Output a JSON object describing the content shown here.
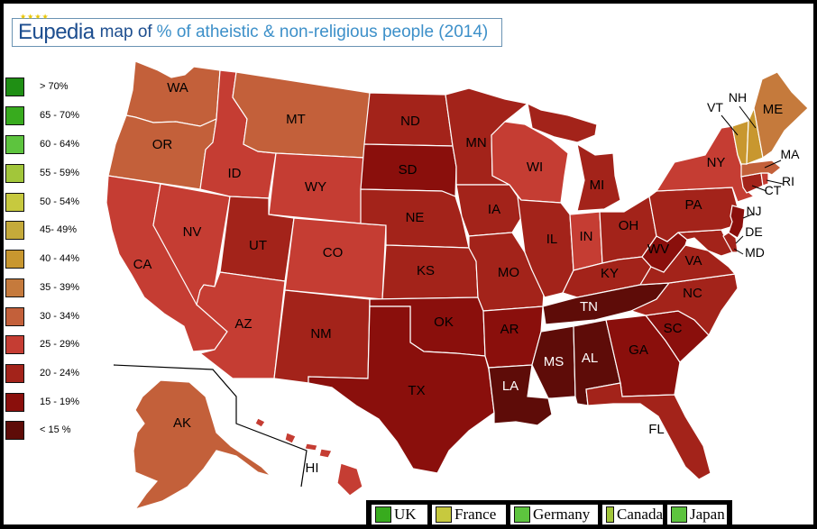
{
  "title": {
    "brand": "Eupedia",
    "text": "map of",
    "accent": "% of atheistic & non-religious people (2014)"
  },
  "legend": [
    {
      "label": "> 70%",
      "color": "#1f8f14"
    },
    {
      "label": "65 - 70%",
      "color": "#38ab1e"
    },
    {
      "label": "60 - 64%",
      "color": "#5dc43e"
    },
    {
      "label": "55 - 59%",
      "color": "#a2c63a"
    },
    {
      "label": "50 - 54%",
      "color": "#c7c93e"
    },
    {
      "label": "45- 49%",
      "color": "#c5aa3a"
    },
    {
      "label": "40 - 44%",
      "color": "#c8972f"
    },
    {
      "label": "35 - 39%",
      "color": "#c57a3c"
    },
    {
      "label": "30 - 34%",
      "color": "#c3603a"
    },
    {
      "label": "25 - 29%",
      "color": "#c53d33"
    },
    {
      "label": "20 - 24%",
      "color": "#a3231a"
    },
    {
      "label": "15 - 19%",
      "color": "#8a0f0c"
    },
    {
      "label": "< 15 %",
      "color": "#5e0c08"
    }
  ],
  "states": {
    "WA": "30 - 34%",
    "OR": "30 - 34%",
    "CA": "25 - 29%",
    "NV": "25 - 29%",
    "ID": "25 - 29%",
    "MT": "30 - 34%",
    "WY": "25 - 29%",
    "UT": "20 - 24%",
    "AZ": "25 - 29%",
    "CO": "25 - 29%",
    "NM": "20 - 24%",
    "ND": "20 - 24%",
    "SD": "15 - 19%",
    "NE": "20 - 24%",
    "KS": "20 - 24%",
    "OK": "15 - 19%",
    "TX": "15 - 19%",
    "MN": "20 - 24%",
    "IA": "20 - 24%",
    "MO": "20 - 24%",
    "AR": "15 - 19%",
    "LA": "< 15 %",
    "WI": "25 - 29%",
    "IL": "20 - 24%",
    "MI": "20 - 24%",
    "IN": "25 - 29%",
    "OH": "20 - 24%",
    "KY": "20 - 24%",
    "TN": "< 15 %",
    "MS": "< 15 %",
    "AL": "< 15 %",
    "GA": "15 - 19%",
    "FL": "20 - 24%",
    "SC": "15 - 19%",
    "NC": "20 - 24%",
    "VA": "20 - 24%",
    "WV": "15 - 19%",
    "MD": "20 - 24%",
    "DE": "20 - 24%",
    "PA": "20 - 24%",
    "NJ": "15 - 19%",
    "NY": "25 - 29%",
    "CT": "20 - 24%",
    "RI": "25 - 29%",
    "MA": "30 - 34%",
    "VT": "40 - 44%",
    "NH": "40 - 44%",
    "ME": "35 - 39%",
    "AK": "30 - 34%",
    "HI": "25 - 29%"
  },
  "labels": {
    "WA": "WA",
    "OR": "OR",
    "CA": "CA",
    "NV": "NV",
    "ID": "ID",
    "MT": "MT",
    "WY": "WY",
    "UT": "UT",
    "AZ": "AZ",
    "CO": "CO",
    "NM": "NM",
    "ND": "ND",
    "SD": "SD",
    "NE": "NE",
    "KS": "KS",
    "OK": "OK",
    "TX": "TX",
    "MN": "MN",
    "IA": "IA",
    "MO": "MO",
    "AR": "AR",
    "LA": "LA",
    "WI": "WI",
    "IL": "IL",
    "MI": "MI",
    "IN": "IN",
    "OH": "OH",
    "KY": "KY",
    "TN": "TN",
    "MS": "MS",
    "AL": "AL",
    "GA": "GA",
    "FL": "FL",
    "SC": "SC",
    "NC": "NC",
    "VA": "VA",
    "WV": "WV",
    "MD": "MD",
    "DE": "DE",
    "PA": "PA",
    "NJ": "NJ",
    "NY": "NY",
    "CT": "CT",
    "RI": "RI",
    "MA": "MA",
    "VT": "VT",
    "NH": "NH",
    "ME": "ME",
    "AK": "AK",
    "HI": "HI"
  },
  "comparison": [
    {
      "label": "UK",
      "color": "#38ab1e"
    },
    {
      "label": "France",
      "color": "#c7c93e"
    },
    {
      "label": "Germany",
      "color": "#5dc43e"
    },
    {
      "label": "Canada",
      "color": "#a2c63a"
    },
    {
      "label": "Japan",
      "color": "#5dc43e"
    }
  ]
}
